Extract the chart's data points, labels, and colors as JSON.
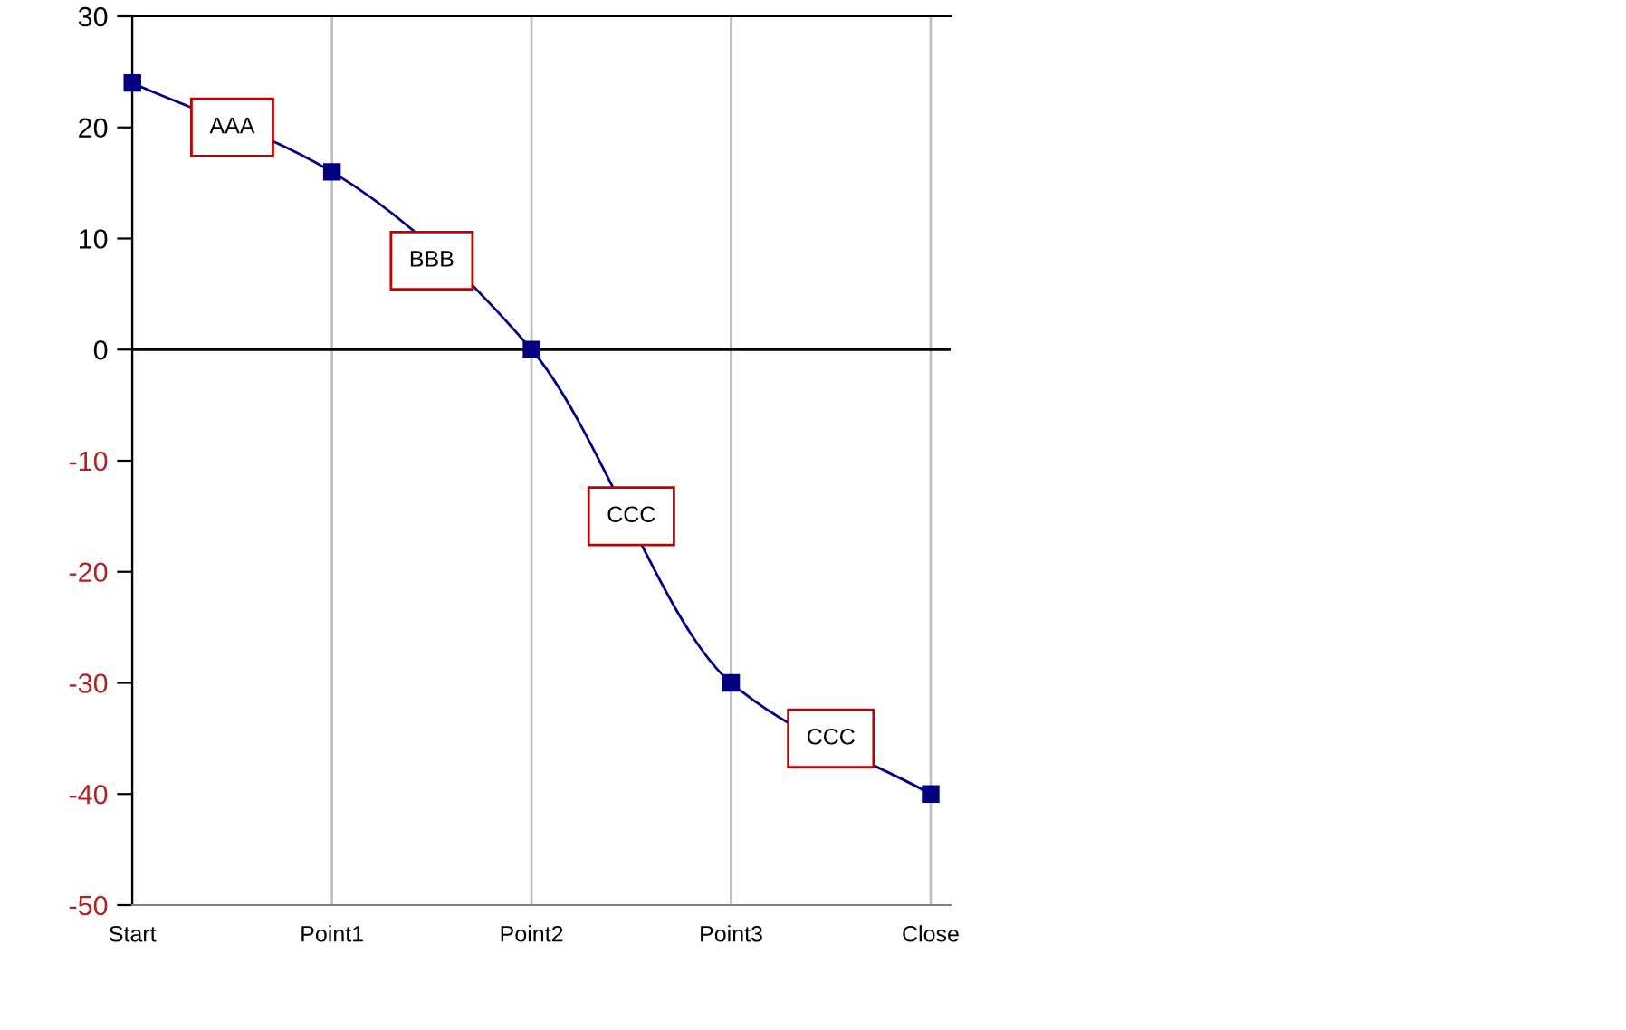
{
  "chart_data": {
    "type": "line",
    "categories": [
      "Start",
      "Point1",
      "Point2",
      "Point3",
      "Close"
    ],
    "series": [
      {
        "color": "#000080",
        "values": [
          24,
          16,
          0,
          -30,
          -40
        ]
      }
    ],
    "ylim": [
      -50,
      30
    ],
    "yticks": [
      -50,
      -40,
      -30,
      -20,
      -10,
      0,
      10,
      20,
      30
    ],
    "grid": "x",
    "marker": "square",
    "line_style": "solid",
    "annotations": [
      "AAA",
      "BBB",
      "CCC",
      "CCC"
    ]
  }
}
